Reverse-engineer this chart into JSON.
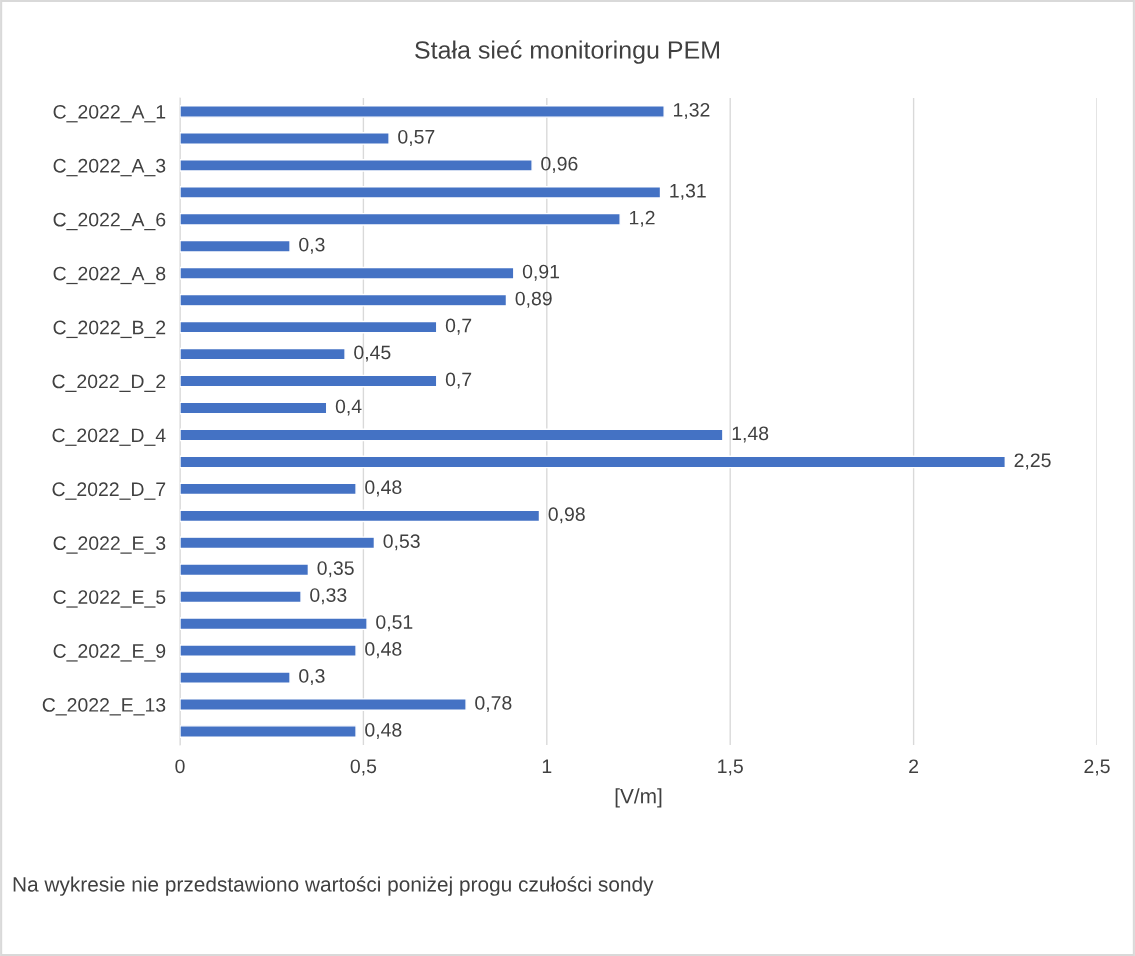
{
  "chart_data": {
    "type": "bar",
    "orientation": "horizontal",
    "title": "Stała sieć monitoringu PEM",
    "xlabel": "[V/m]",
    "categories": [
      "C_2022_A_1",
      null,
      "C_2022_A_3",
      null,
      "C_2022_A_6",
      null,
      "C_2022_A_8",
      null,
      "C_2022_B_2",
      null,
      "C_2022_D_2",
      null,
      "C_2022_D_4",
      null,
      "C_2022_D_7",
      null,
      "C_2022_E_3",
      null,
      "C_2022_E_5",
      null,
      "C_2022_E_9",
      null,
      "C_2022_E_13",
      null
    ],
    "values": [
      1.32,
      0.57,
      0.96,
      1.31,
      1.2,
      0.3,
      0.91,
      0.89,
      0.7,
      0.45,
      0.7,
      0.4,
      1.48,
      2.25,
      0.48,
      0.98,
      0.53,
      0.35,
      0.33,
      0.51,
      0.48,
      0.3,
      0.78,
      0.48
    ],
    "value_labels": [
      "1,32",
      "0,57",
      "0,96",
      "1,31",
      "1,2",
      "0,3",
      "0,91",
      "0,89",
      "0,7",
      "0,45",
      "0,7",
      "0,4",
      "1,48",
      "2,25",
      "0,48",
      "0,98",
      "0,53",
      "0,35",
      "0,33",
      "0,51",
      "0,48",
      "0,3",
      "0,78",
      "0,48"
    ],
    "color": "#4472c4",
    "xlim": [
      0,
      2.5
    ],
    "xticks": [
      0,
      {
        "value": 0.5,
        "label": "0,5"
      },
      1,
      {
        "value": 1.5,
        "label": "1,5"
      },
      2,
      {
        "value": 2.5,
        "label": "2,5"
      }
    ],
    "grid": "x",
    "annotations": [
      "Na wykresie nie przedstawiono wartości poniżej progu czułości sondy"
    ]
  }
}
